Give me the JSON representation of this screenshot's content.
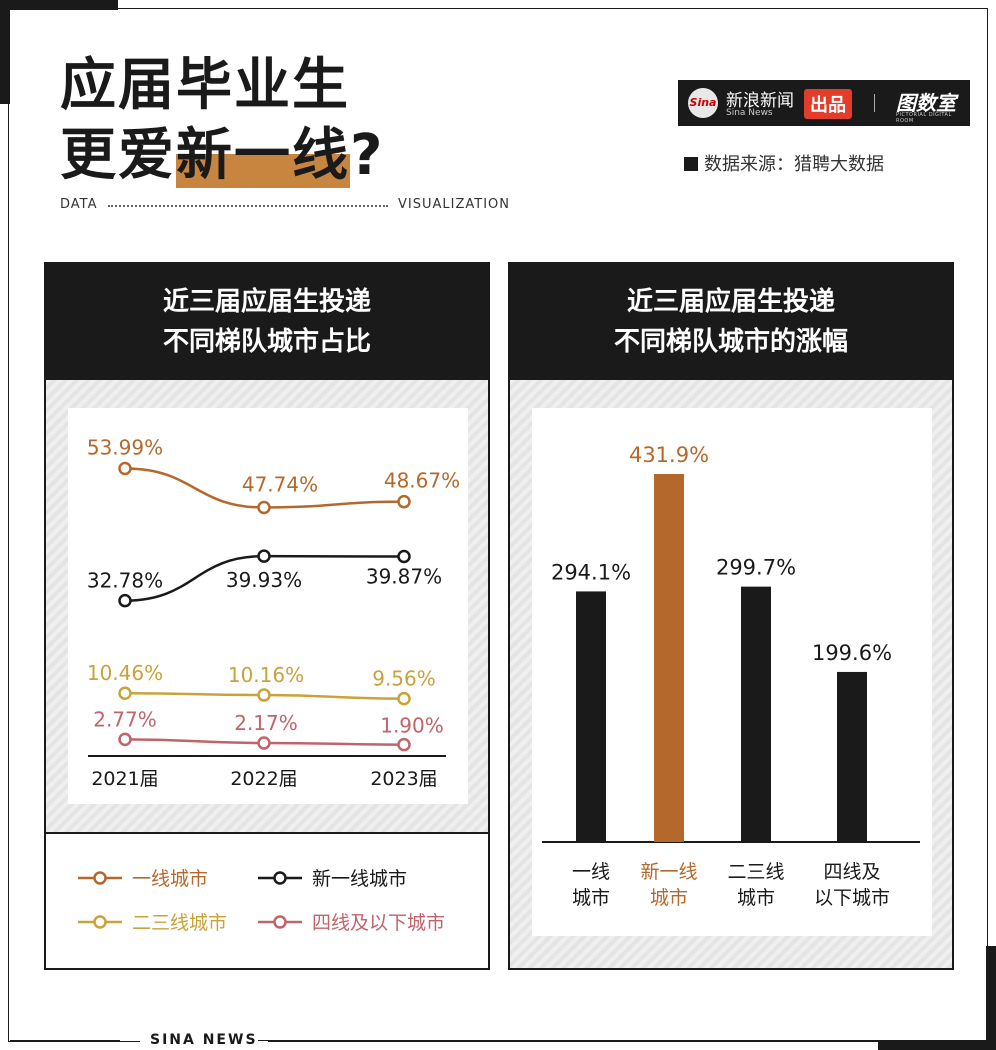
{
  "title": {
    "line1": "应届毕业生",
    "line2_prefix": "更爱",
    "line2_highlight": "新一线",
    "line2_suffix": "?"
  },
  "data_label_left": "DATA",
  "data_label_right": "VISUALIZATION",
  "brand": {
    "logo": "Sina",
    "name": "新浪新闻",
    "sub": "Sina News",
    "badge": "出品",
    "studio": "图数室",
    "studio_sub": "PICTORIAL DIGITAL ROOM"
  },
  "source": "数据来源：猎聘大数据",
  "footer": "SINA  NEWS",
  "colors": {
    "tier1": "#b5682c",
    "new_tier1": "#1a1a1a",
    "tier23": "#c9a23a",
    "tier4": "#c0636a"
  },
  "chart_data": [
    {
      "type": "line",
      "title": "近三届应届生投递\n不同梯队城市占比",
      "title_lines": [
        "近三届应届生投递",
        "不同梯队城市占比"
      ],
      "categories": [
        "2021届",
        "2022届",
        "2023届"
      ],
      "value_labels": [
        [
          "53.99%",
          "47.74%",
          "48.67%"
        ],
        [
          "32.78%",
          "39.93%",
          "39.87%"
        ],
        [
          "10.46%",
          "10.16%",
          "9.56%"
        ],
        [
          "2.77%",
          "2.17%",
          "1.90%"
        ]
      ],
      "series": [
        {
          "name": "一线城市",
          "values": [
            53.99,
            47.74,
            48.67
          ],
          "color": "#b5682c"
        },
        {
          "name": "新一线城市",
          "values": [
            32.78,
            39.93,
            39.87
          ],
          "color": "#1a1a1a"
        },
        {
          "name": "二三线城市",
          "values": [
            10.46,
            10.16,
            9.56
          ],
          "color": "#c9a23a"
        },
        {
          "name": "四线及以下城市",
          "values": [
            2.77,
            2.17,
            1.9
          ],
          "color": "#c0636a"
        }
      ],
      "legend_position": "bottom"
    },
    {
      "type": "bar",
      "title": "近三届应届生投递\n不同梯队城市的涨幅",
      "title_lines": [
        "近三届应届生投递",
        "不同梯队城市的涨幅"
      ],
      "categories": [
        "一线\n城市",
        "新一线\n城市",
        "二三线\n城市",
        "四线及\n以下城市"
      ],
      "category_lines": [
        [
          "一线",
          "城市"
        ],
        [
          "新一线",
          "城市"
        ],
        [
          "二三线",
          "城市"
        ],
        [
          "四线及",
          "以下城市"
        ]
      ],
      "values": [
        294.1,
        431.9,
        299.7,
        199.6
      ],
      "value_labels": [
        "294.1%",
        "431.9%",
        "299.7%",
        "199.6%"
      ],
      "colors": [
        "#1a1a1a",
        "#b5682c",
        "#1a1a1a",
        "#1a1a1a"
      ],
      "unit": "%"
    }
  ]
}
